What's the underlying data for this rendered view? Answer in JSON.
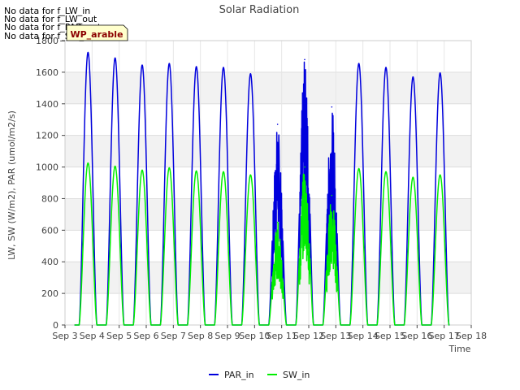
{
  "chart_data": {
    "type": "line",
    "title": "Solar Radiation",
    "xlabel": "Time",
    "ylabel": "LW, SW (W/m2), PAR (umol/m2/s)",
    "ylim": [
      0,
      1800
    ],
    "xlim": [
      3,
      18
    ],
    "y_ticks": [
      0,
      200,
      400,
      600,
      800,
      1000,
      1200,
      1400,
      1600,
      1800
    ],
    "x_ticks": [
      {
        "value": 3,
        "label": "Sep 3"
      },
      {
        "value": 4,
        "label": "Sep 4"
      },
      {
        "value": 5,
        "label": "Sep 5"
      },
      {
        "value": 6,
        "label": "Sep 6"
      },
      {
        "value": 7,
        "label": "Sep 7"
      },
      {
        "value": 8,
        "label": "Sep 8"
      },
      {
        "value": 9,
        "label": "Sep 9"
      },
      {
        "value": 10,
        "label": "Sep 10"
      },
      {
        "value": 11,
        "label": "Sep 11"
      },
      {
        "value": 12,
        "label": "Sep 12"
      },
      {
        "value": 13,
        "label": "Sep 13"
      },
      {
        "value": 14,
        "label": "Sep 14"
      },
      {
        "value": 15,
        "label": "Sep 15"
      },
      {
        "value": 16,
        "label": "Sep 16"
      },
      {
        "value": 17,
        "label": "Sep 17"
      },
      {
        "value": 18,
        "label": "Sep 18"
      }
    ],
    "grid": true,
    "legend_position": "bottom-center",
    "series": [
      {
        "name": "PAR_in",
        "color": "#0000dd",
        "daily_peaks": [
          {
            "day": 3.85,
            "peak": 1725
          },
          {
            "day": 4.85,
            "peak": 1690
          },
          {
            "day": 5.85,
            "peak": 1645
          },
          {
            "day": 6.85,
            "peak": 1655
          },
          {
            "day": 7.85,
            "peak": 1635
          },
          {
            "day": 8.85,
            "peak": 1630
          },
          {
            "day": 9.85,
            "peak": 1590
          },
          {
            "day": 10.85,
            "peak": 1270,
            "cloudy": true
          },
          {
            "day": 11.85,
            "peak": 1680,
            "cloudy": true
          },
          {
            "day": 12.85,
            "peak": 1380,
            "cloudy": true
          },
          {
            "day": 13.85,
            "peak": 1655
          },
          {
            "day": 14.85,
            "peak": 1630
          },
          {
            "day": 15.85,
            "peak": 1570
          },
          {
            "day": 16.85,
            "peak": 1595
          }
        ]
      },
      {
        "name": "SW_in",
        "color": "#00ee00",
        "daily_peaks": [
          {
            "day": 3.85,
            "peak": 1025
          },
          {
            "day": 4.85,
            "peak": 1005
          },
          {
            "day": 5.85,
            "peak": 980
          },
          {
            "day": 6.85,
            "peak": 995
          },
          {
            "day": 7.85,
            "peak": 975
          },
          {
            "day": 8.85,
            "peak": 970
          },
          {
            "day": 9.85,
            "peak": 950
          },
          {
            "day": 10.85,
            "peak": 650,
            "cloudy": true
          },
          {
            "day": 11.85,
            "peak": 1000,
            "cloudy": true
          },
          {
            "day": 12.85,
            "peak": 820,
            "cloudy": true
          },
          {
            "day": 13.85,
            "peak": 990
          },
          {
            "day": 14.85,
            "peak": 970
          },
          {
            "day": 15.85,
            "peak": 935
          },
          {
            "day": 16.85,
            "peak": 950
          }
        ]
      }
    ]
  },
  "annotations": {
    "no_data_lines": [
      "No data for f_LW_in",
      "No data for f_LW_out",
      "No data for f_PAR_out",
      "No data for f_SW_out"
    ],
    "badge_label": "WP_arable",
    "badge_bg": "#ffffcc",
    "badge_color": "#8b0000"
  }
}
